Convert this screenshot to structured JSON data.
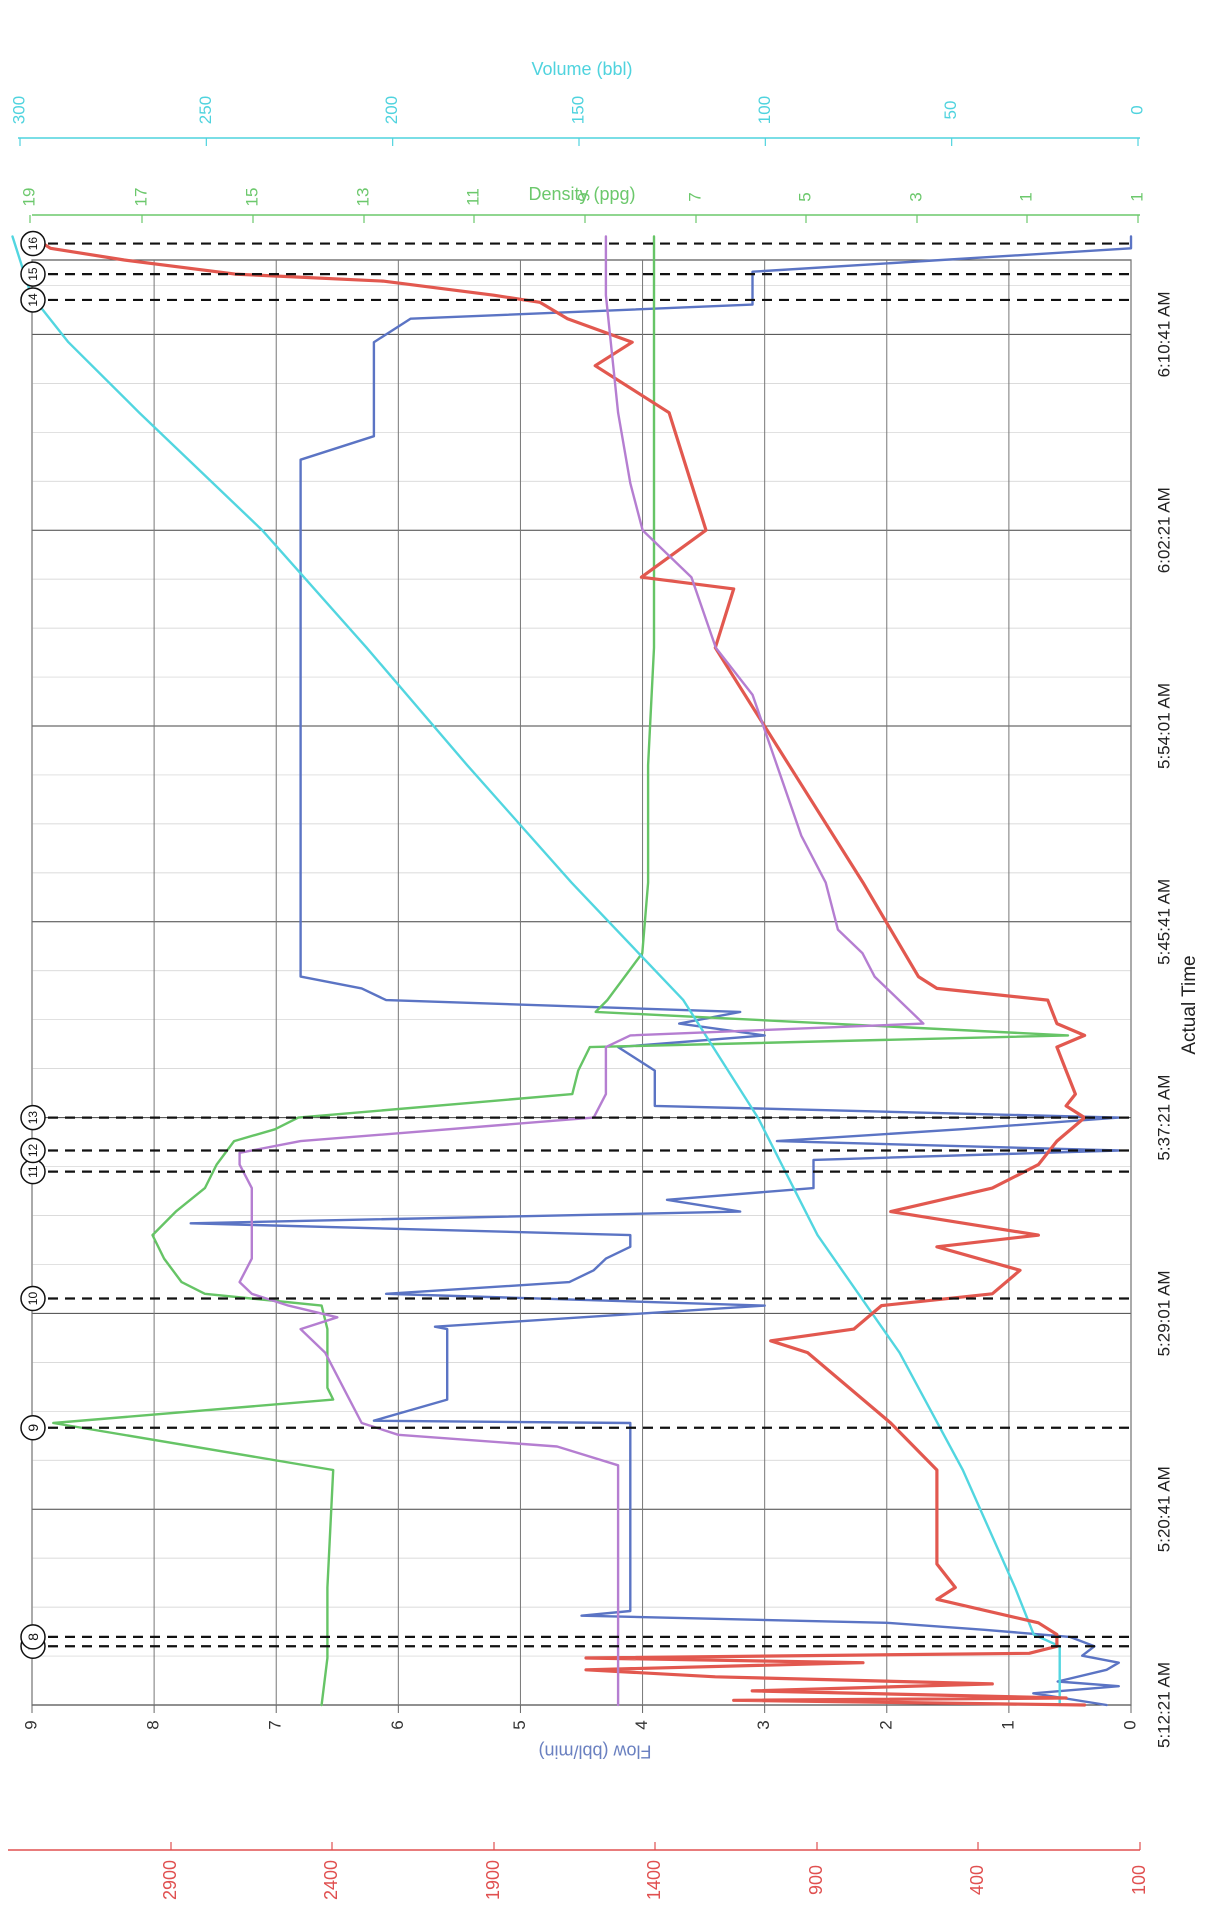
{
  "chart_data": {
    "type": "line",
    "orientation": "rotated-90-clockwise",
    "x_axis": {
      "title": "Actual Time",
      "ticks": [
        "5:12:21 AM",
        "5:20:41 AM",
        "5:29:01 AM",
        "5:37:21 AM",
        "5:45:41 AM",
        "5:54:01 AM",
        "6:02:21 AM",
        "6:10:41 AM"
      ],
      "tick_minutes": [
        0,
        8.333,
        16.667,
        25,
        33.333,
        41.667,
        50,
        58.333
      ],
      "range_minutes": [
        0,
        61.5
      ]
    },
    "y_axes": {
      "flow": {
        "title": "Flow (bbl/min)",
        "ticks": [
          "0",
          "1",
          "2",
          "3",
          "4",
          "5",
          "6",
          "7",
          "8",
          "9"
        ],
        "range": [
          0,
          9
        ],
        "color": "#6a80c0"
      },
      "density": {
        "title": "Density (ppg)",
        "ticks": [
          "1",
          "1",
          "3",
          "5",
          "7",
          "9",
          "11",
          "13",
          "15",
          "17",
          "19"
        ],
        "range": [
          0,
          19
        ],
        "color": "#6cc86c"
      },
      "volume": {
        "title": "Volume (bbl)",
        "ticks": [
          "0",
          "50",
          "100",
          "150",
          "200",
          "250",
          "300"
        ],
        "range": [
          0,
          300
        ],
        "color": "#4fd3de"
      },
      "pressure": {
        "ticks": [
          "100",
          "400",
          "900",
          "1400",
          "1900",
          "2400",
          "2900"
        ],
        "range": [
          0,
          3200
        ],
        "color": "#e05050"
      }
    },
    "events": [
      {
        "label": "7",
        "t": 2.5
      },
      {
        "label": "8",
        "t": 2.9
      },
      {
        "label": "9",
        "t": 11.8
      },
      {
        "label": "10",
        "t": 17.3
      },
      {
        "label": "11",
        "t": 22.7
      },
      {
        "label": "12",
        "t": 23.6
      },
      {
        "label": "13",
        "t": 25.0
      },
      {
        "label": "14",
        "t": 59.8
      },
      {
        "label": "15",
        "t": 60.9
      },
      {
        "label": "16",
        "t": 62.2
      }
    ],
    "series": [
      {
        "key": "flow",
        "axis": "flow",
        "color": "#5b74c4",
        "t": [
          0,
          0.5,
          0.8,
          1.0,
          1.5,
          1.8,
          2.1,
          2.5,
          2.9,
          3.2,
          3.5,
          3.8,
          4.0,
          5.0,
          10.0,
          12.0,
          12.1,
          13.0,
          14.0,
          15.0,
          16.0,
          16.1,
          17.0,
          17.5,
          18.0,
          18.5,
          19.0,
          19.5,
          20.0,
          20.5,
          21.0,
          21.5,
          22.0,
          22.5,
          23.2,
          23.6,
          24.0,
          24.5,
          25.0,
          25.5,
          26.0,
          27.0,
          28.0,
          28.5,
          29.0,
          29.5,
          30.0,
          30.5,
          31.0,
          32.0,
          33.0,
          40.0,
          47.0,
          48.0,
          50.0,
          51.0,
          52.0,
          53.0,
          54.0,
          55.0,
          56.0,
          57.0,
          58.0,
          59.0,
          59.6,
          60.0,
          61.0,
          62.0,
          62.5
        ],
        "v": [
          0.2,
          0.8,
          0.1,
          0.6,
          0.2,
          0.1,
          0.4,
          0.3,
          0.5,
          1.2,
          2.0,
          4.5,
          4.1,
          4.1,
          4.1,
          4.1,
          6.2,
          5.6,
          5.6,
          5.6,
          5.6,
          5.7,
          3.0,
          6.1,
          4.6,
          4.4,
          4.3,
          4.1,
          4.1,
          7.7,
          3.2,
          3.8,
          2.6,
          2.6,
          2.6,
          0.1,
          2.9,
          1.4,
          0.1,
          3.9,
          3.9,
          3.9,
          4.2,
          3.0,
          3.7,
          3.2,
          6.1,
          6.3,
          6.8,
          6.8,
          6.8,
          6.8,
          6.8,
          6.8,
          6.8,
          6.8,
          6.8,
          6.8,
          6.2,
          6.2,
          6.2,
          6.2,
          6.2,
          5.9,
          3.1,
          3.1,
          3.1,
          0.0,
          0.0
        ]
      },
      {
        "key": "density",
        "axis": "density",
        "color": "#66c466",
        "t": [
          0,
          2,
          5,
          10,
          12,
          13,
          13.5,
          14,
          15,
          16,
          17,
          17.5,
          18,
          19,
          20,
          21,
          22,
          23,
          24,
          24.5,
          25,
          26,
          27,
          28,
          28.5,
          29.5,
          30,
          31,
          32,
          35,
          40,
          45,
          50,
          55,
          60,
          62.5
        ],
        "v": [
          14.0,
          13.9,
          13.9,
          13.8,
          18.6,
          13.8,
          13.9,
          13.9,
          13.9,
          13.9,
          14.0,
          16.0,
          16.4,
          16.7,
          16.9,
          16.5,
          16.0,
          15.8,
          15.5,
          14.8,
          14.4,
          9.7,
          9.6,
          9.4,
          1.2,
          9.3,
          9.1,
          8.8,
          8.5,
          8.4,
          8.4,
          8.3,
          8.3,
          8.3,
          8.3,
          8.3
        ]
      },
      {
        "key": "volume",
        "axis": "volume",
        "color": "#52d6e0",
        "t": [
          0,
          2.5,
          3.0,
          5,
          10,
          15,
          20,
          25,
          30,
          35,
          40,
          45,
          50,
          55,
          58,
          60,
          62.5
        ],
        "v": [
          21,
          21,
          28,
          33,
          47,
          64,
          86,
          102,
          122,
          152,
          180,
          207,
          235,
          268,
          287,
          297,
          302
        ]
      },
      {
        "key": "pressure",
        "axis": "pressure",
        "color": "#e2584f",
        "t": [
          0,
          0.2,
          0.3,
          0.6,
          0.9,
          1.2,
          1.5,
          1.8,
          2.0,
          2.2,
          2.5,
          3.0,
          3.5,
          4.5,
          5.0,
          6.0,
          10.0,
          12.0,
          15.0,
          15.5,
          16.0,
          17.0,
          17.5,
          18.5,
          19.5,
          20.0,
          21.0,
          22.0,
          23.0,
          24.0,
          25.0,
          25.5,
          26.0,
          27.0,
          28.0,
          28.5,
          29.0,
          30.0,
          30.5,
          31.0,
          35.0,
          40.0,
          45.0,
          47.5,
          48.0,
          50.0,
          55.0,
          57.0,
          58.0,
          59.0,
          59.7,
          60.0,
          60.6,
          60.9,
          61.5,
          62.0,
          62.5
        ],
        "v": [
          300,
          2200,
          400,
          2100,
          800,
          2300,
          3000,
          1500,
          3000,
          600,
          450,
          450,
          550,
          1100,
          1000,
          1100,
          1100,
          1350,
          1800,
          2000,
          1550,
          1400,
          800,
          650,
          1100,
          550,
          1350,
          800,
          550,
          450,
          300,
          400,
          350,
          400,
          450,
          300,
          450,
          500,
          1100,
          1200,
          1500,
          1900,
          2300,
          2200,
          2700,
          2350,
          2550,
          2950,
          2750,
          3100,
          3250,
          3500,
          4100,
          4900,
          5500,
          5900,
          6000
        ]
      },
      {
        "key": "purple",
        "axis": "flow",
        "color": "#b57ed1",
        "t": [
          0,
          10,
          10.2,
          11,
          11.5,
          12,
          13,
          14,
          15,
          16,
          16.5,
          17,
          17.5,
          18,
          19,
          20,
          21,
          22,
          23,
          23.5,
          24,
          25,
          26,
          27,
          28,
          28.5,
          29,
          30,
          31,
          32,
          33,
          35,
          37,
          40,
          43,
          45,
          48,
          50,
          52,
          55,
          60,
          62.5
        ],
        "v": [
          4.2,
          4.2,
          4.2,
          4.7,
          6.0,
          6.3,
          6.4,
          6.5,
          6.6,
          6.8,
          6.5,
          6.9,
          7.2,
          7.3,
          7.2,
          7.2,
          7.2,
          7.2,
          7.3,
          7.3,
          6.8,
          4.4,
          4.3,
          4.3,
          4.3,
          4.1,
          1.7,
          1.9,
          2.1,
          2.2,
          2.4,
          2.5,
          2.7,
          2.9,
          3.1,
          3.4,
          3.6,
          4.0,
          4.1,
          4.2,
          4.3,
          4.3
        ]
      }
    ]
  }
}
